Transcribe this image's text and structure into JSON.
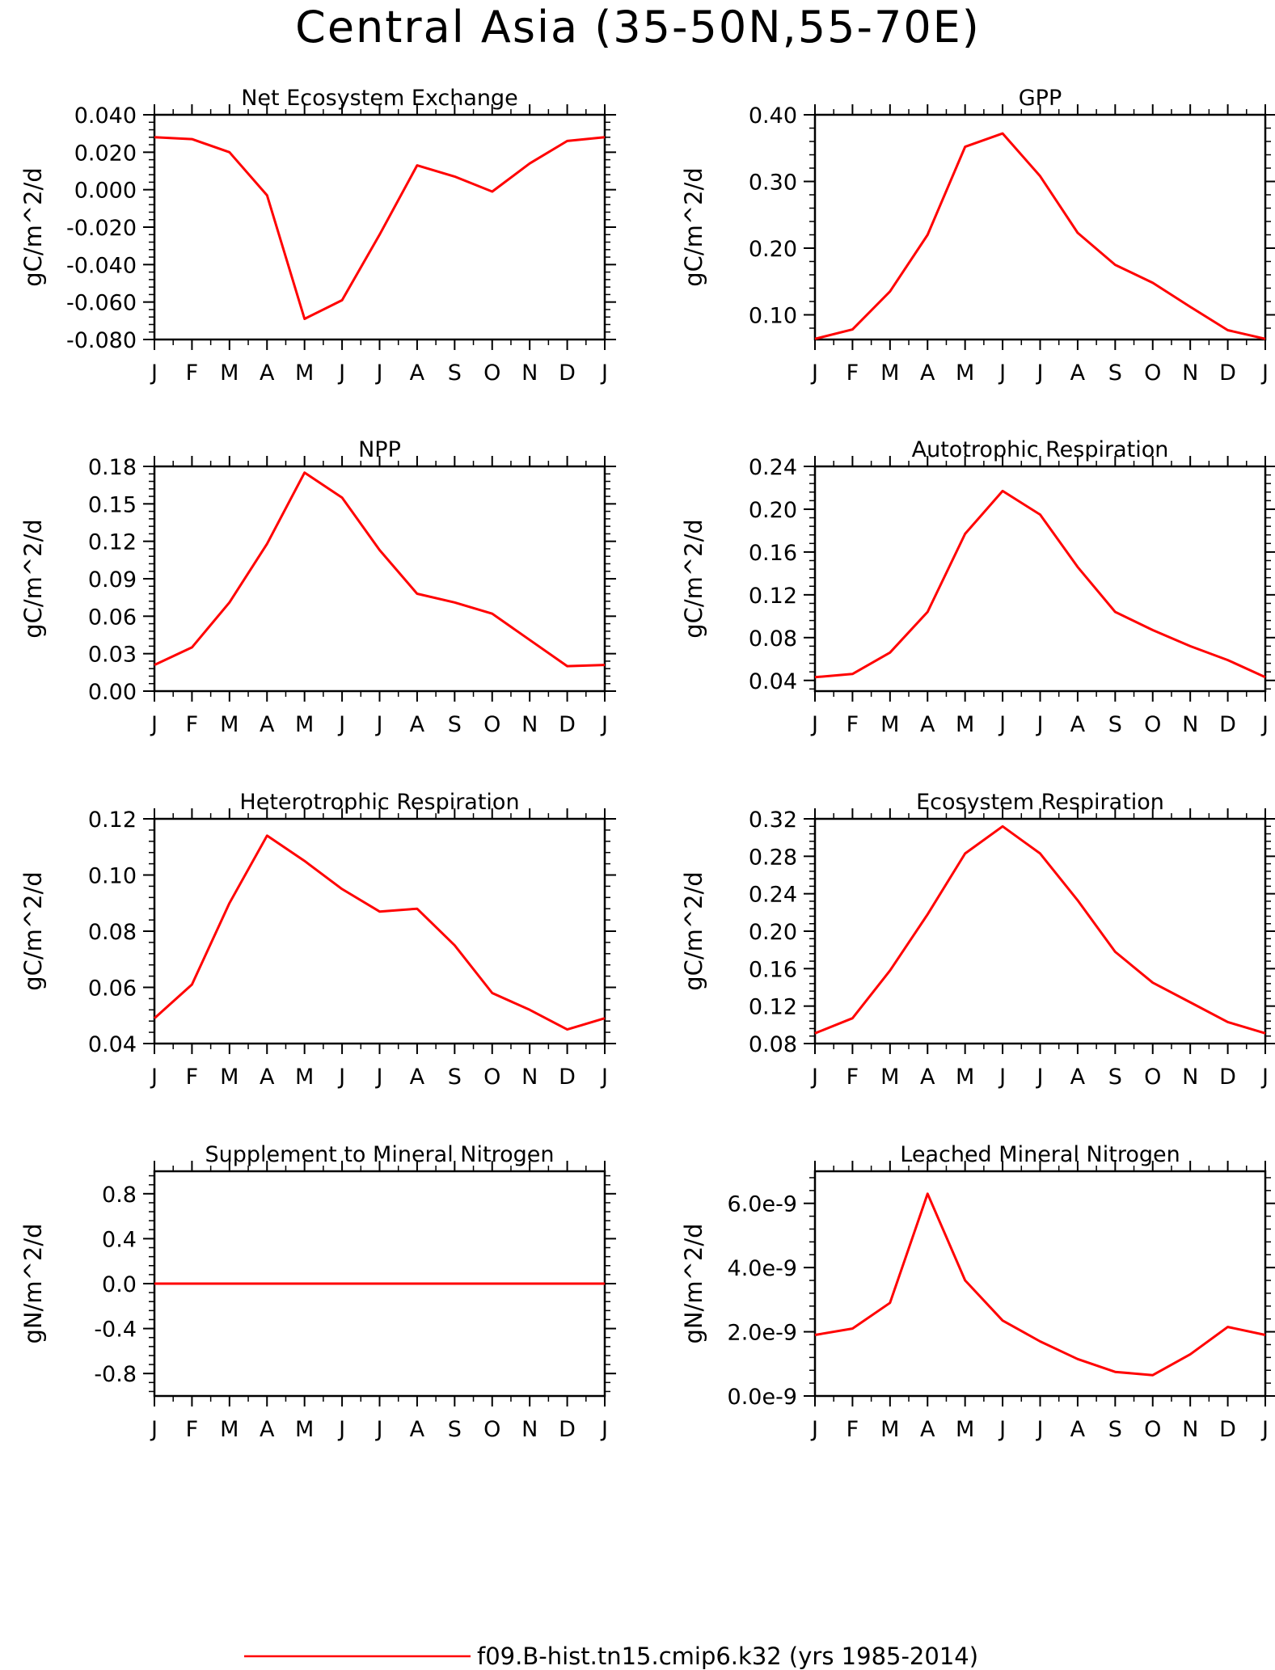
{
  "figure": {
    "title": "Central Asia (35-50N,55-70E)",
    "line_color": "#ff0000",
    "legend": {
      "label": "f09.B-hist.tn15.cmip6.k32 (yrs 1985-2014)"
    }
  },
  "chart_data": [
    {
      "type": "line",
      "title": "Net Ecosystem Exchange",
      "ylabel": "gC/m^2/d",
      "categories": [
        "J",
        "F",
        "M",
        "A",
        "M",
        "J",
        "J",
        "A",
        "S",
        "O",
        "N",
        "D",
        "J"
      ],
      "ylim": [
        -0.08,
        0.04
      ],
      "yticks": [
        -0.08,
        -0.06,
        -0.04,
        -0.02,
        0.0,
        0.02,
        0.04
      ],
      "ytick_labels": [
        "-0.080",
        "-0.060",
        "-0.040",
        "-0.020",
        "0.000",
        "0.020",
        "0.040"
      ],
      "values": [
        0.028,
        0.027,
        0.02,
        -0.003,
        -0.069,
        -0.059,
        -0.024,
        0.013,
        0.007,
        -0.001,
        0.014,
        0.026,
        0.028
      ]
    },
    {
      "type": "line",
      "title": "GPP",
      "ylabel": "gC/m^2/d",
      "categories": [
        "J",
        "F",
        "M",
        "A",
        "M",
        "J",
        "J",
        "A",
        "S",
        "O",
        "N",
        "D",
        "J"
      ],
      "ylim": [
        0.063,
        0.4
      ],
      "yticks": [
        0.1,
        0.2,
        0.3,
        0.4
      ],
      "ytick_labels": [
        "0.10",
        "0.20",
        "0.30",
        "0.40"
      ],
      "values": [
        0.064,
        0.078,
        0.135,
        0.22,
        0.352,
        0.372,
        0.308,
        0.223,
        0.175,
        0.148,
        0.112,
        0.077,
        0.064
      ]
    },
    {
      "type": "line",
      "title": "NPP",
      "ylabel": "gC/m^2/d",
      "categories": [
        "J",
        "F",
        "M",
        "A",
        "M",
        "J",
        "J",
        "A",
        "S",
        "O",
        "N",
        "D",
        "J"
      ],
      "ylim": [
        0.0,
        0.18
      ],
      "yticks": [
        0.0,
        0.03,
        0.06,
        0.09,
        0.12,
        0.15,
        0.18
      ],
      "ytick_labels": [
        "0.00",
        "0.03",
        "0.06",
        "0.09",
        "0.12",
        "0.15",
        "0.18"
      ],
      "values": [
        0.021,
        0.035,
        0.071,
        0.118,
        0.175,
        0.155,
        0.113,
        0.078,
        0.071,
        0.062,
        0.041,
        0.02,
        0.021
      ]
    },
    {
      "type": "line",
      "title": "Autotrophic Respiration",
      "ylabel": "gC/m^2/d",
      "categories": [
        "J",
        "F",
        "M",
        "A",
        "M",
        "J",
        "J",
        "A",
        "S",
        "O",
        "N",
        "D",
        "J"
      ],
      "ylim": [
        0.03,
        0.24
      ],
      "yticks": [
        0.04,
        0.08,
        0.12,
        0.16,
        0.2,
        0.24
      ],
      "ytick_labels": [
        "0.04",
        "0.08",
        "0.12",
        "0.16",
        "0.20",
        "0.24"
      ],
      "values": [
        0.043,
        0.046,
        0.066,
        0.104,
        0.177,
        0.217,
        0.195,
        0.146,
        0.104,
        0.087,
        0.072,
        0.059,
        0.043
      ]
    },
    {
      "type": "line",
      "title": "Heterotrophic Respiration",
      "ylabel": "gC/m^2/d",
      "categories": [
        "J",
        "F",
        "M",
        "A",
        "M",
        "J",
        "J",
        "A",
        "S",
        "O",
        "N",
        "D",
        "J"
      ],
      "ylim": [
        0.04,
        0.12
      ],
      "yticks": [
        0.04,
        0.06,
        0.08,
        0.1,
        0.12
      ],
      "ytick_labels": [
        "0.04",
        "0.06",
        "0.08",
        "0.10",
        "0.12"
      ],
      "values": [
        0.049,
        0.061,
        0.09,
        0.114,
        0.105,
        0.095,
        0.087,
        0.088,
        0.075,
        0.058,
        0.052,
        0.045,
        0.049
      ]
    },
    {
      "type": "line",
      "title": "Ecosystem Respiration",
      "ylabel": "gC/m^2/d",
      "categories": [
        "J",
        "F",
        "M",
        "A",
        "M",
        "J",
        "J",
        "A",
        "S",
        "O",
        "N",
        "D",
        "J"
      ],
      "ylim": [
        0.08,
        0.32
      ],
      "yticks": [
        0.08,
        0.12,
        0.16,
        0.2,
        0.24,
        0.28,
        0.32
      ],
      "ytick_labels": [
        "0.08",
        "0.12",
        "0.16",
        "0.20",
        "0.24",
        "0.28",
        "0.32"
      ],
      "values": [
        0.091,
        0.107,
        0.158,
        0.218,
        0.283,
        0.312,
        0.283,
        0.233,
        0.178,
        0.145,
        0.124,
        0.103,
        0.091
      ]
    },
    {
      "type": "line",
      "title": "Supplement to Mineral Nitrogen",
      "ylabel": "gN/m^2/d",
      "categories": [
        "J",
        "F",
        "M",
        "A",
        "M",
        "J",
        "J",
        "A",
        "S",
        "O",
        "N",
        "D",
        "J"
      ],
      "ylim": [
        -1.0,
        1.0
      ],
      "yticks": [
        -0.8,
        -0.4,
        0.0,
        0.4,
        0.8
      ],
      "ytick_labels": [
        "-0.8",
        "-0.4",
        "0.0",
        "0.4",
        "0.8"
      ],
      "values": [
        0,
        0,
        0,
        0,
        0,
        0,
        0,
        0,
        0,
        0,
        0,
        0,
        0
      ]
    },
    {
      "type": "line",
      "title": "Leached Mineral Nitrogen",
      "ylabel": "gN/m^2/d",
      "categories": [
        "J",
        "F",
        "M",
        "A",
        "M",
        "J",
        "J",
        "A",
        "S",
        "O",
        "N",
        "D",
        "J"
      ],
      "ylim": [
        0.0,
        7e-09
      ],
      "yticks": [
        0.0,
        2e-09,
        4e-09,
        6e-09
      ],
      "ytick_labels": [
        "0.0e-9",
        "2.0e-9",
        "4.0e-9",
        "6.0e-9"
      ],
      "values": [
        1.9e-09,
        2.1e-09,
        2.9e-09,
        6.3e-09,
        3.6e-09,
        2.35e-09,
        1.7e-09,
        1.15e-09,
        7.5e-10,
        6.5e-10,
        1.3e-09,
        2.15e-09,
        1.9e-09
      ]
    }
  ]
}
